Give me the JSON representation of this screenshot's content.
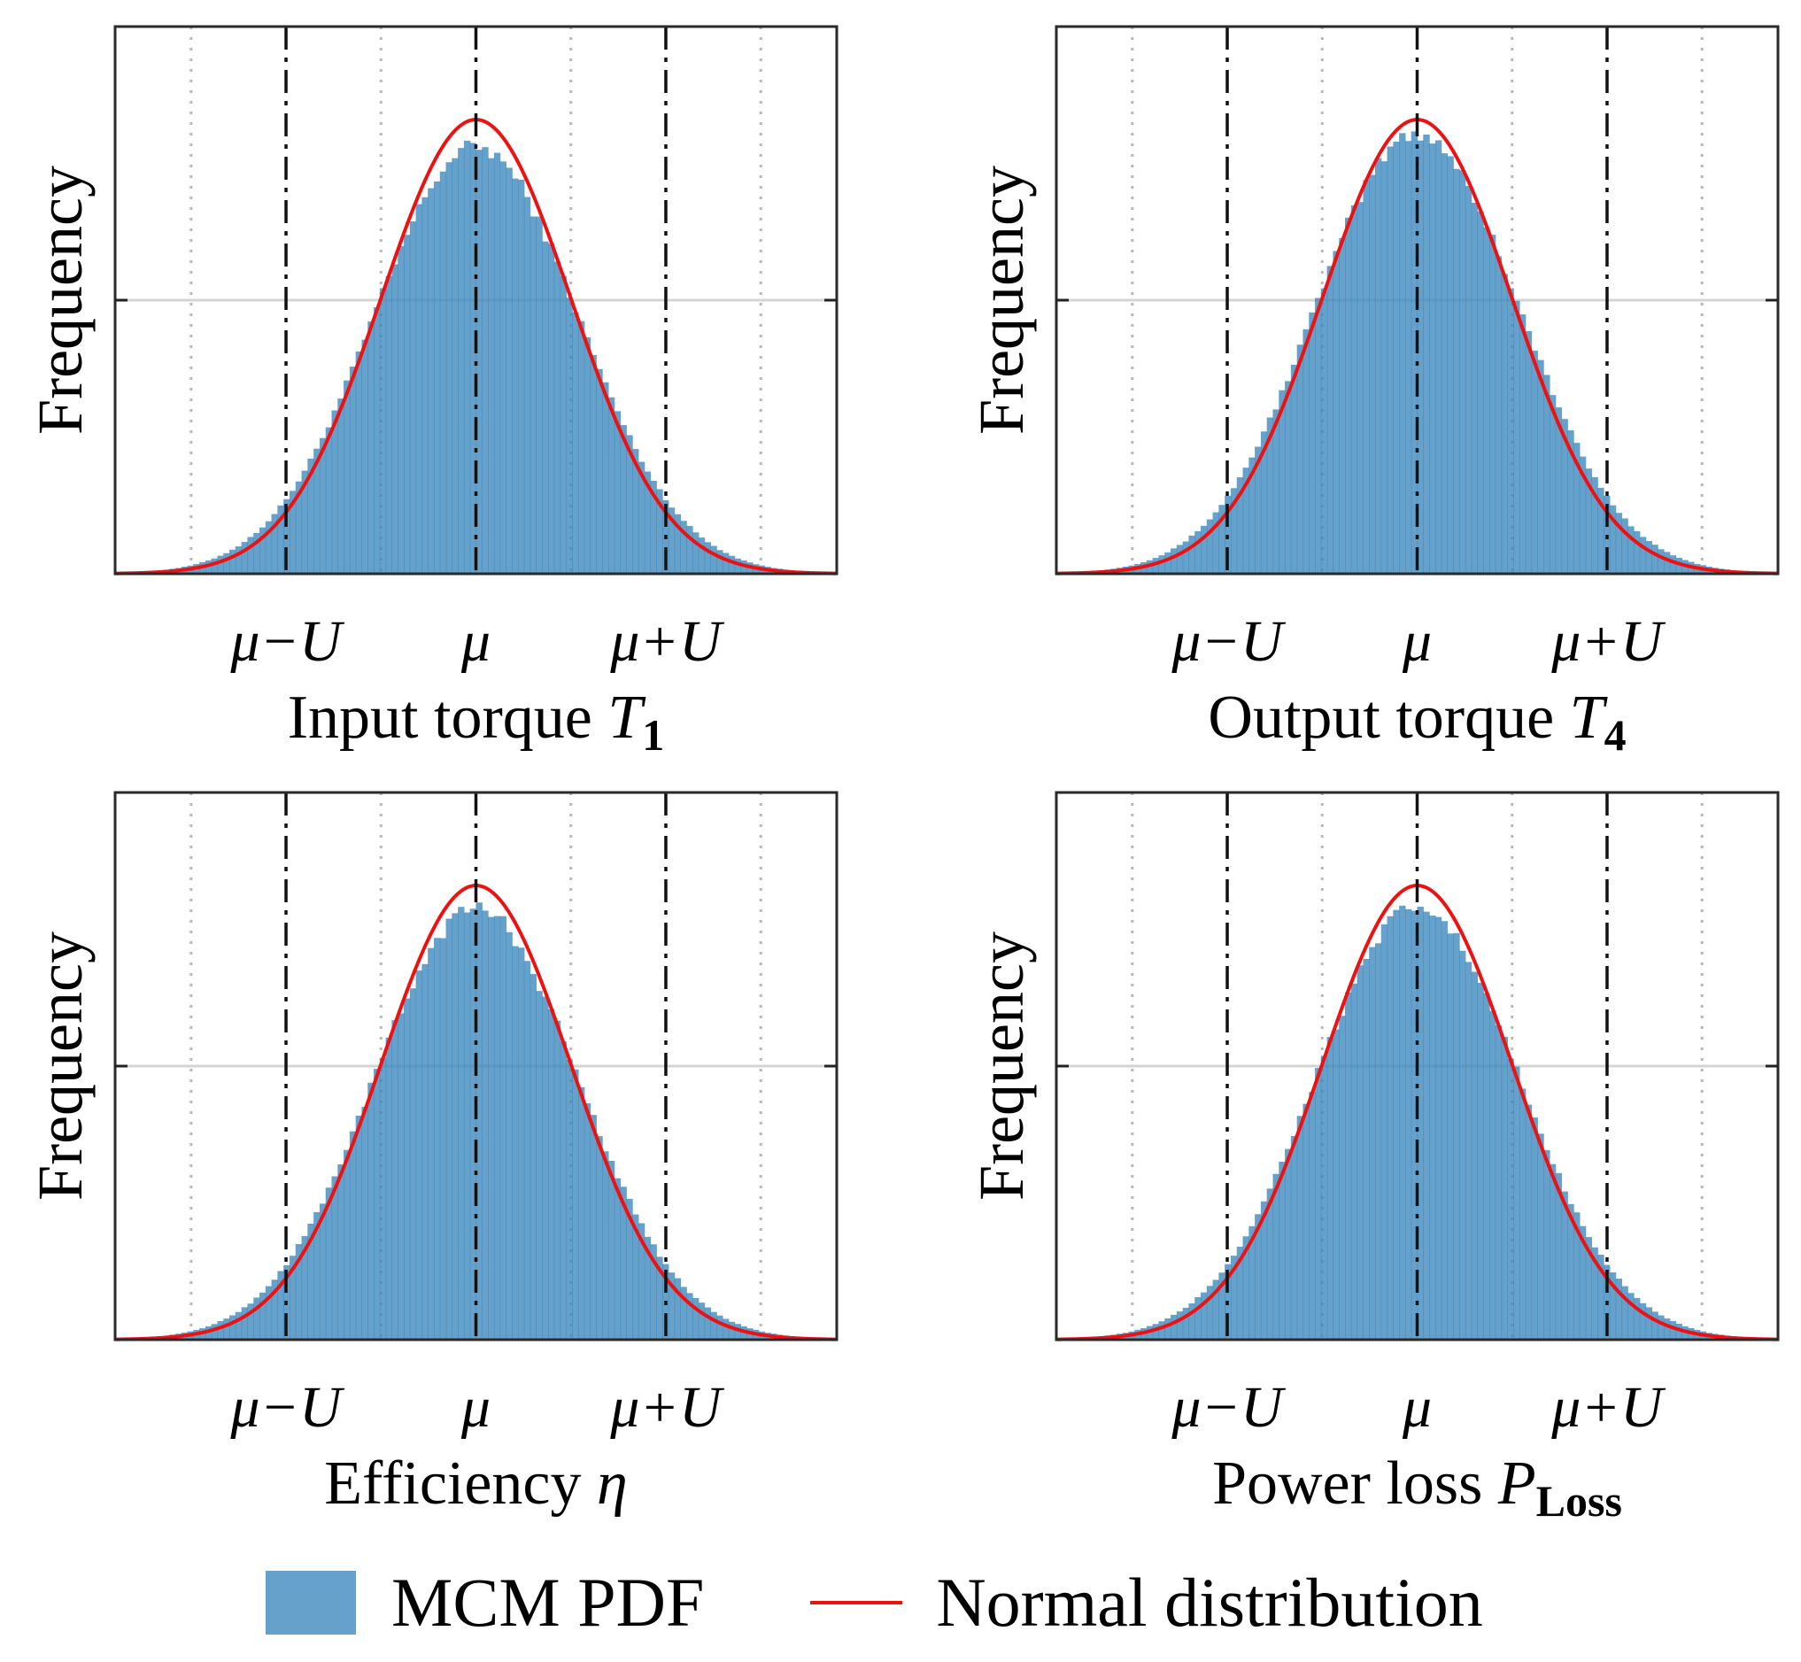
{
  "legend": {
    "hist_label": "MCM PDF",
    "line_label": "Normal distribution",
    "hist_color": "#3a87bd",
    "line_color": "#ee1111"
  },
  "chart_data": [
    {
      "type": "bar",
      "panel": "top-left",
      "title": "",
      "xlabel": "Input torque T1",
      "xlabel_main": "Input torque ",
      "xlabel_symbol": "T",
      "xlabel_sub": "1",
      "ylabel": "Frequency",
      "x_ticks": [
        "μ−U",
        "μ",
        "μ+U"
      ],
      "x_range_sigma": [
        -3.8,
        3.8
      ],
      "coverage_factor": 2,
      "peak_ratio": 0.94,
      "skew": 0.0,
      "legend": [
        "MCM PDF",
        "Normal distribution"
      ]
    },
    {
      "type": "bar",
      "panel": "top-right",
      "title": "",
      "xlabel": "Output torque T4",
      "xlabel_main": "Output torque ",
      "xlabel_symbol": "T",
      "xlabel_sub": "4",
      "ylabel": "Frequency",
      "x_ticks": [
        "μ−U",
        "μ",
        "μ+U"
      ],
      "x_range_sigma": [
        -3.8,
        3.8
      ],
      "coverage_factor": 2,
      "peak_ratio": 0.97,
      "skew": 0.0,
      "legend": [
        "MCM PDF",
        "Normal distribution"
      ]
    },
    {
      "type": "bar",
      "panel": "bottom-left",
      "title": "",
      "xlabel": "Efficiency η",
      "xlabel_main": "Efficiency ",
      "xlabel_symbol": "η",
      "xlabel_sub": "",
      "ylabel": "Frequency",
      "x_ticks": [
        "μ−U",
        "μ",
        "μ+U"
      ],
      "x_range_sigma": [
        -3.8,
        3.8
      ],
      "coverage_factor": 2,
      "peak_ratio": 0.95,
      "skew": 0.0,
      "legend": [
        "MCM PDF",
        "Normal distribution"
      ]
    },
    {
      "type": "bar",
      "panel": "bottom-right",
      "title": "",
      "xlabel": "Power loss PLoss",
      "xlabel_main": "Power loss ",
      "xlabel_symbol": "P",
      "xlabel_sub": "Loss",
      "ylabel": "Frequency",
      "x_ticks": [
        "μ−U",
        "μ",
        "μ+U"
      ],
      "x_range_sigma": [
        -3.8,
        3.8
      ],
      "coverage_factor": 2,
      "peak_ratio": 0.95,
      "skew": 0.0,
      "legend": [
        "MCM PDF",
        "Normal distribution"
      ]
    }
  ]
}
